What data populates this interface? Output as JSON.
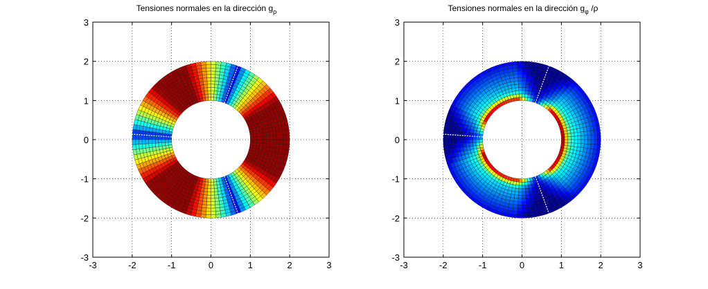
{
  "figure": {
    "background": "#ffffff"
  },
  "chart_data": [
    {
      "type": "heatmap",
      "plot": "polar-surface",
      "title_main": "Tensiones normales en la dirección g",
      "title_sub": "ρ",
      "title_suffix": "",
      "xlabel": "",
      "ylabel": "",
      "xlim": [
        -3,
        3
      ],
      "ylim": [
        -3,
        3
      ],
      "xticks": [
        "-3",
        "-2",
        "-1",
        "0",
        "1",
        "2",
        "3"
      ],
      "yticks": [
        "-3",
        "-2",
        "-1",
        "0",
        "1",
        "2",
        "3"
      ],
      "grid": true,
      "grid_style": "dotted",
      "colormap": "jet",
      "domain": {
        "r_inner": 1,
        "r_outer": 2,
        "radial_cells": 12,
        "angular_cells": 96
      },
      "crack_angles_deg": [
        70,
        176,
        290
      ],
      "field": "angular-bands"
    },
    {
      "type": "heatmap",
      "plot": "polar-surface",
      "title_main": "Tensiones normales en la dirección g",
      "title_sub": "φ",
      "title_suffix": " /ρ",
      "xlabel": "",
      "ylabel": "",
      "xlim": [
        -3,
        3
      ],
      "ylim": [
        -3,
        3
      ],
      "xticks": [
        "-3",
        "-2",
        "-1",
        "0",
        "1",
        "2",
        "3"
      ],
      "yticks": [
        "-3",
        "-2",
        "-1",
        "0",
        "1",
        "2",
        "3"
      ],
      "grid": true,
      "grid_style": "dotted",
      "colormap": "jet",
      "domain": {
        "r_inner": 1,
        "r_outer": 2,
        "radial_cells": 12,
        "angular_cells": 96
      },
      "crack_angles_deg": [
        70,
        176,
        290
      ],
      "field": "radial-decay"
    }
  ]
}
